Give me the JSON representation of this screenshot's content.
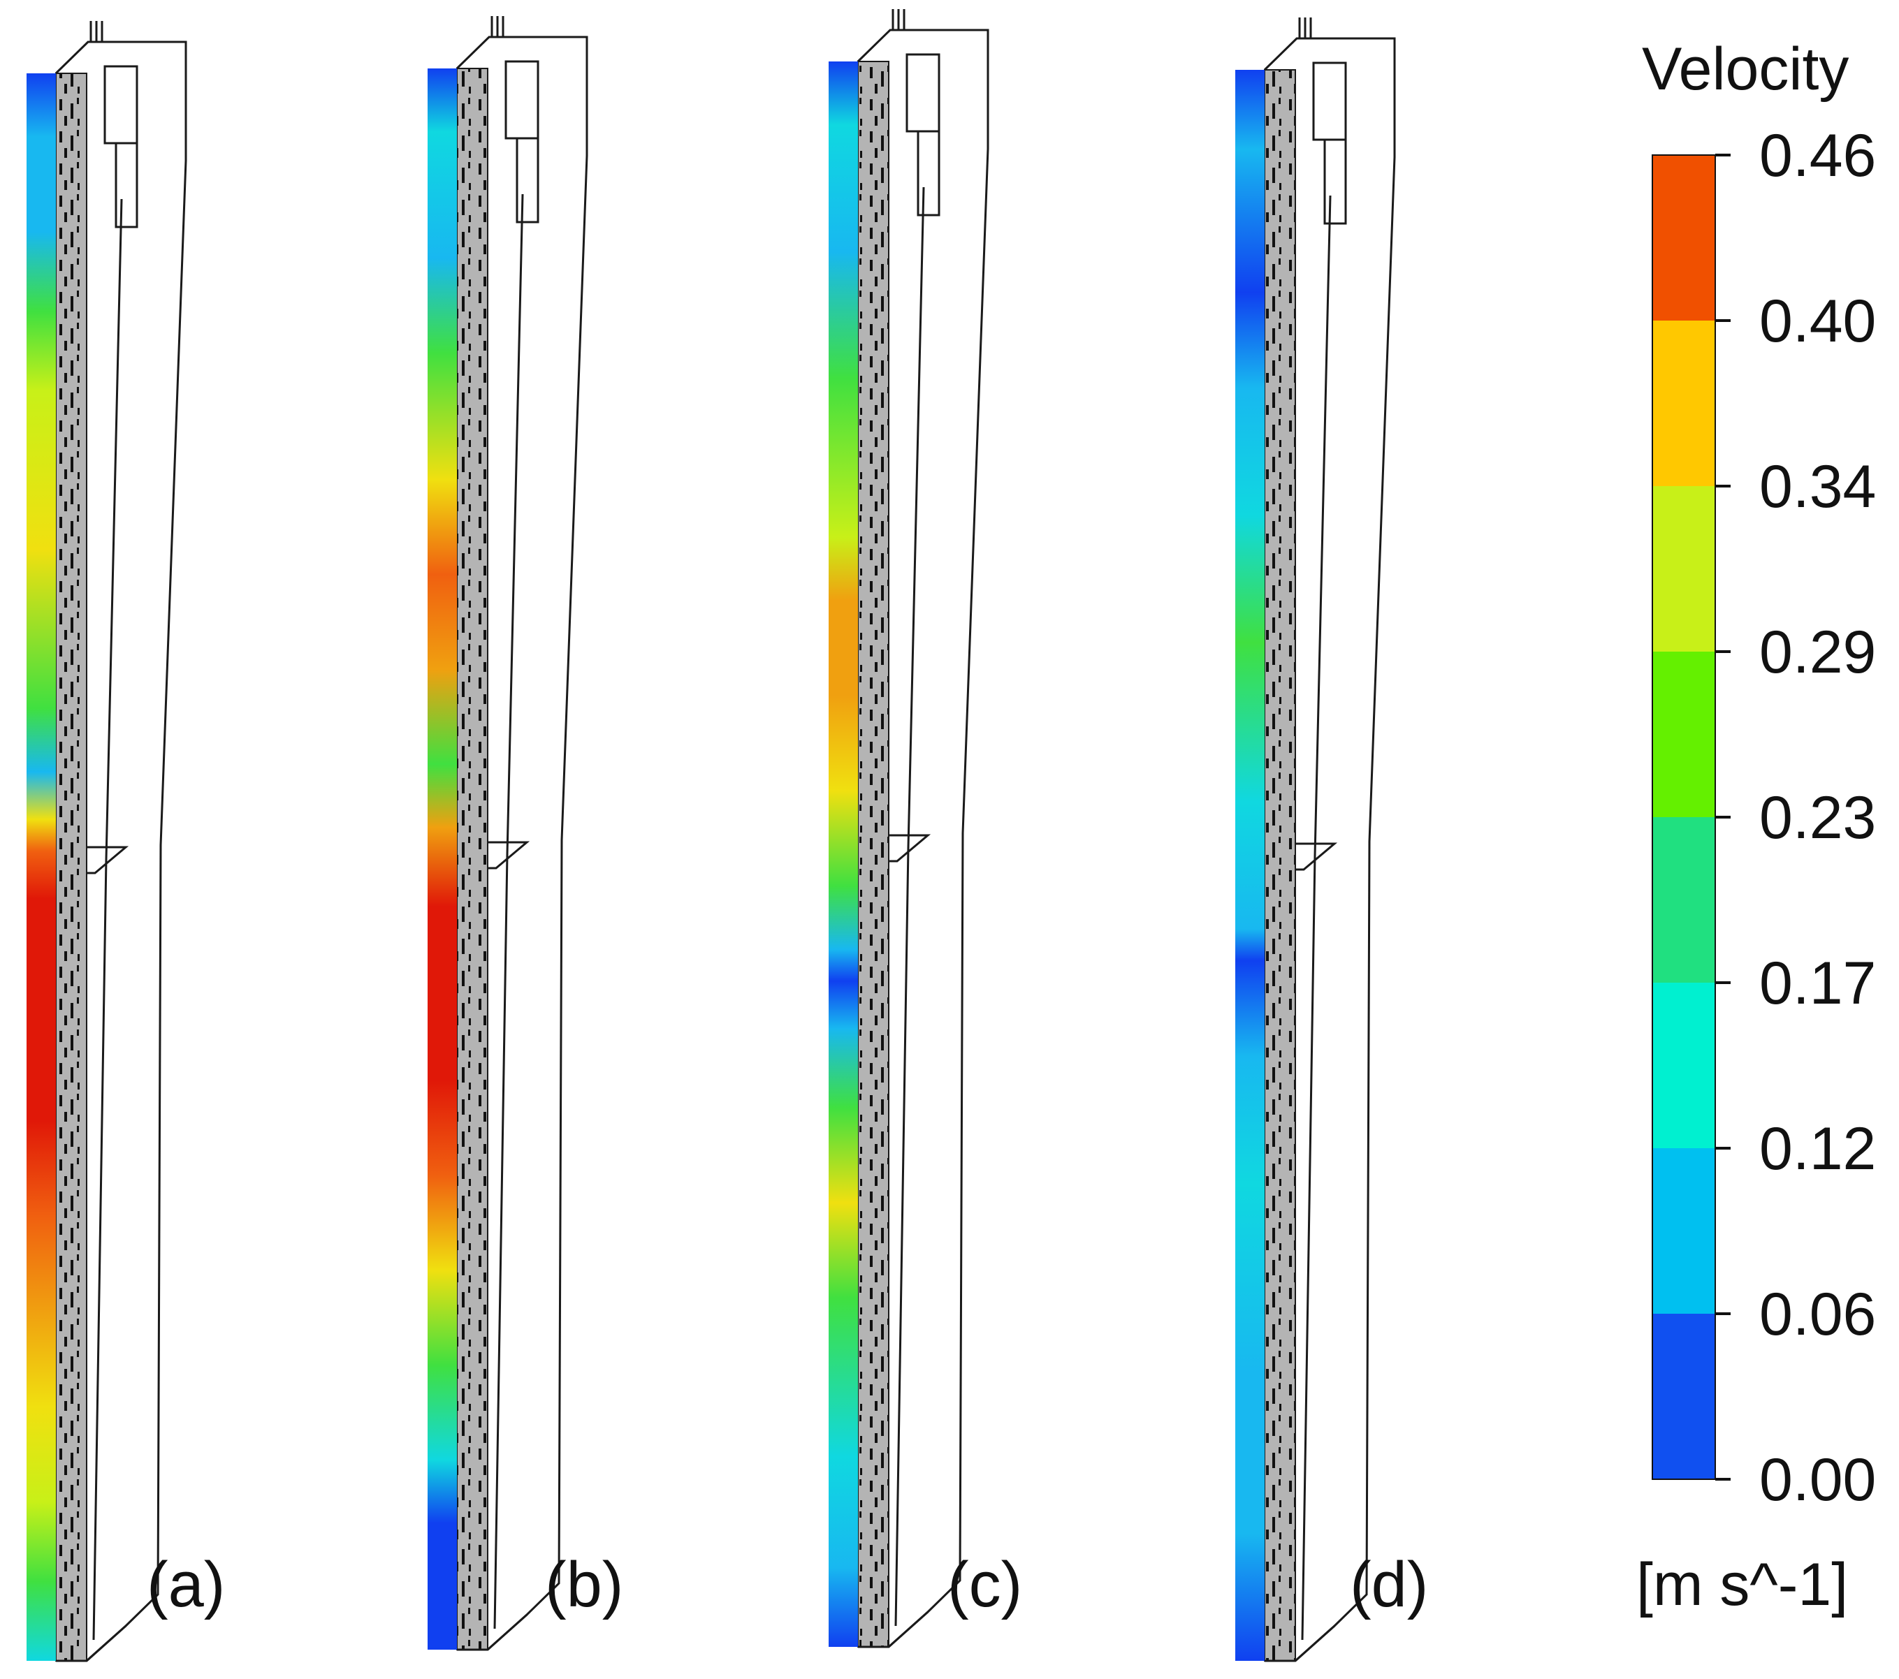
{
  "panels": [
    {
      "id": "a",
      "label": "(a)"
    },
    {
      "id": "b",
      "label": "(b)"
    },
    {
      "id": "c",
      "label": "(c)"
    },
    {
      "id": "d",
      "label": "(d)"
    }
  ],
  "legend": {
    "title": "Velocity",
    "unit": "[m s^-1]",
    "ticks": [
      "0.46",
      "0.40",
      "0.34",
      "0.29",
      "0.23",
      "0.17",
      "0.12",
      "0.06",
      "0.00"
    ],
    "colors": [
      "#f05000",
      "#ffc800",
      "#c8f018",
      "#64f000",
      "#20e080",
      "#00f0d0",
      "#00c0f0",
      "#1050f0"
    ]
  },
  "colors": {
    "wall_grey": "#b4b4b4",
    "outline": "#1a1a1a",
    "strip_red": "#e01808",
    "strip_orange": "#f06010",
    "strip_yellow": "#f0e010",
    "strip_green": "#40e040",
    "strip_cyan": "#10d8e0",
    "strip_lightblue": "#18b8f0",
    "strip_blue": "#1040f0"
  }
}
